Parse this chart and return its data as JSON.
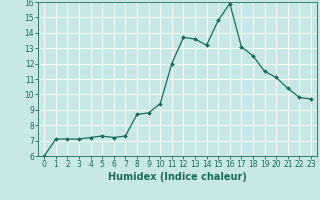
{
  "x": [
    0,
    1,
    2,
    3,
    4,
    5,
    6,
    7,
    8,
    9,
    10,
    11,
    12,
    13,
    14,
    15,
    16,
    17,
    18,
    19,
    20,
    21,
    22,
    23
  ],
  "y": [
    6.0,
    7.1,
    7.1,
    7.1,
    7.2,
    7.3,
    7.2,
    7.3,
    8.7,
    8.8,
    9.4,
    12.0,
    13.7,
    13.6,
    13.2,
    14.8,
    15.9,
    13.1,
    12.5,
    11.5,
    11.1,
    10.4,
    9.8,
    9.7
  ],
  "line_color": "#1a6b5a",
  "marker": "D",
  "markersize": 2.0,
  "linewidth": 0.9,
  "xlabel": "Humidex (Indice chaleur)",
  "ylim": [
    6,
    16
  ],
  "xlim": [
    -0.5,
    23.5
  ],
  "yticks": [
    6,
    7,
    8,
    9,
    10,
    11,
    12,
    13,
    14,
    15,
    16
  ],
  "xticks": [
    0,
    1,
    2,
    3,
    4,
    5,
    6,
    7,
    8,
    9,
    10,
    11,
    12,
    13,
    14,
    15,
    16,
    17,
    18,
    19,
    20,
    21,
    22,
    23
  ],
  "bg_color": "#c8e8e8",
  "grid_color": "#ffffff",
  "tick_color": "#1a6b5a",
  "label_color": "#1a6b5a",
  "xlabel_fontsize": 7,
  "tick_fontsize": 5.5
}
